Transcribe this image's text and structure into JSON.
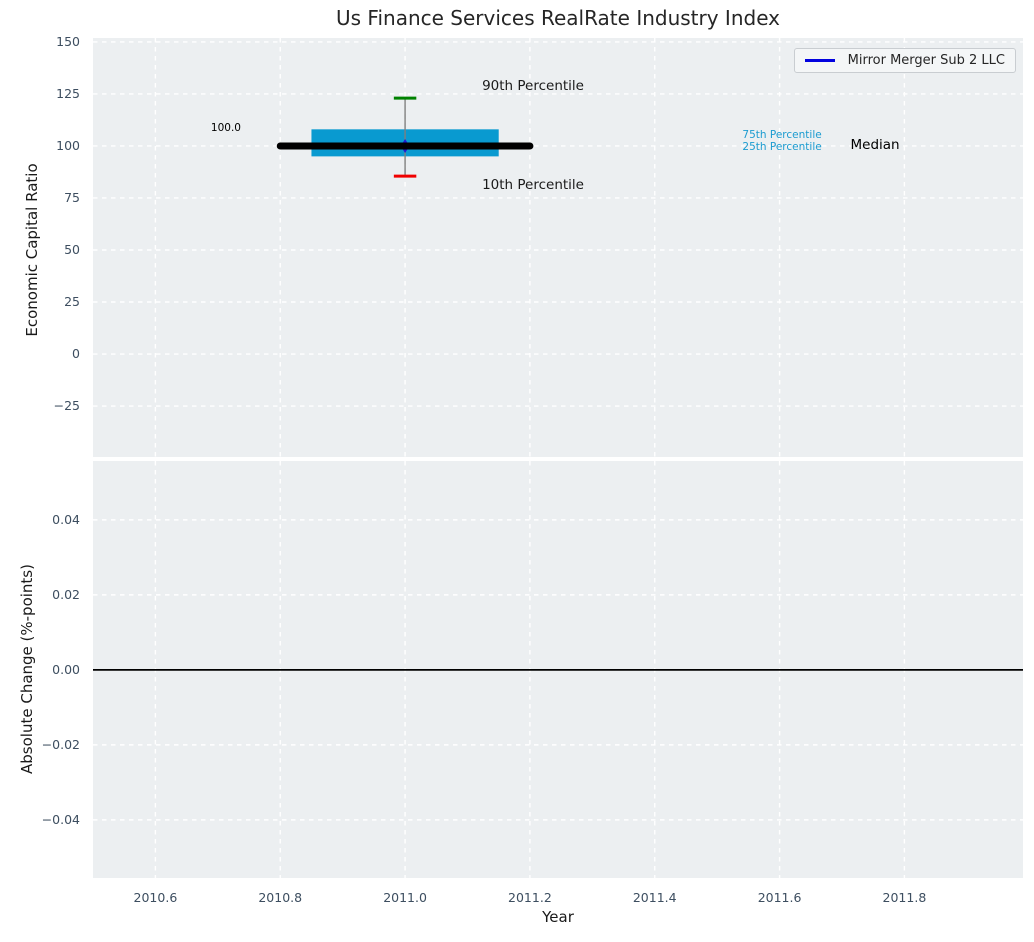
{
  "figure": {
    "background": "#ffffff",
    "axes_background": "#eceff1",
    "grid_color": "#ffffff",
    "tick_color": "#3d4e60",
    "text_color": "#262626"
  },
  "chart_data": [
    {
      "type": "box",
      "title": "Us Finance Services RealRate Industry Index",
      "xlabel": "Year",
      "ylabel": "Economic Capital Ratio",
      "xlim": [
        2010.5,
        2011.99
      ],
      "ylim": [
        -49.5,
        151.9
      ],
      "grid": true,
      "xticks": {
        "values": [
          2010.6,
          2010.8,
          2011.0,
          2011.2,
          2011.4,
          2011.6,
          2011.8
        ],
        "labels": [
          "2010.6",
          "2010.8",
          "2011.0",
          "2011.2",
          "2011.4",
          "2011.6",
          "2011.8"
        ]
      },
      "yticks": {
        "values": [
          150,
          125,
          100,
          75,
          50,
          25,
          0,
          -25
        ],
        "labels": [
          "150",
          "125",
          "100",
          "75",
          "50",
          "25",
          "0",
          "−25"
        ]
      },
      "legend": {
        "location": "upper right",
        "entries": [
          {
            "label": "Mirror Merger Sub 2 LLC",
            "color": "#0202df"
          }
        ]
      },
      "point": {
        "name": "Mirror Merger Sub 2 LLC",
        "x": 2011.0,
        "y": 100.0,
        "marker": "diamond",
        "color": "#1d1dcf"
      },
      "boxplot": {
        "x": 2011.0,
        "p10": 85.5,
        "p25": 95.0,
        "median": 100.0,
        "p75": 108.0,
        "p90": 123.0,
        "box_x_span": [
          2010.85,
          2011.15
        ],
        "median_x_span": [
          2010.8,
          2011.2
        ],
        "cap_half_width": 0.018,
        "colors": {
          "box": "#099ad0",
          "median": "#000000",
          "whisker": "#7f7f7f",
          "p90_cap": "#008200",
          "p10_cap": "#f00000"
        }
      },
      "annotations": [
        {
          "text": "100.0",
          "x": 2010.713,
          "y": 108.6,
          "color": "#000000",
          "size": 10.5
        },
        {
          "text": "90th Percentile",
          "x": 2011.205,
          "y": 128.6,
          "color": "#1a1a1a",
          "size": 13.5
        },
        {
          "text": "10th Percentile",
          "x": 2011.205,
          "y": 81.4,
          "color": "#1a1a1a",
          "size": 13.5
        },
        {
          "text": "75th Percentile",
          "x": 2011.604,
          "y": 105.2,
          "color": "#1b9bd0",
          "size": 10.5
        },
        {
          "text": "25th Percentile",
          "x": 2011.604,
          "y": 99.5,
          "color": "#1b9bd0",
          "size": 10.5
        },
        {
          "text": "Median",
          "x": 2011.753,
          "y": 100.3,
          "color": "#000000",
          "size": 13.5
        }
      ]
    },
    {
      "type": "line",
      "xlabel": "Year",
      "ylabel": "Absolute Change (%-points)",
      "xlim": [
        2010.5,
        2011.99
      ],
      "ylim": [
        -0.0555,
        0.0557
      ],
      "grid": true,
      "xticks": {
        "values": [
          2010.6,
          2010.8,
          2011.0,
          2011.2,
          2011.4,
          2011.6,
          2011.8
        ],
        "labels": [
          "2010.6",
          "2010.8",
          "2011.0",
          "2011.2",
          "2011.4",
          "2011.6",
          "2011.8"
        ]
      },
      "yticks": {
        "values": [
          0.04,
          0.02,
          0.0,
          -0.02,
          -0.04
        ],
        "labels": [
          "0.04",
          "0.02",
          "0.00",
          "−0.02",
          "−0.04"
        ]
      },
      "zero_line": {
        "y": 0.0,
        "color": "#000000"
      },
      "series": []
    }
  ]
}
